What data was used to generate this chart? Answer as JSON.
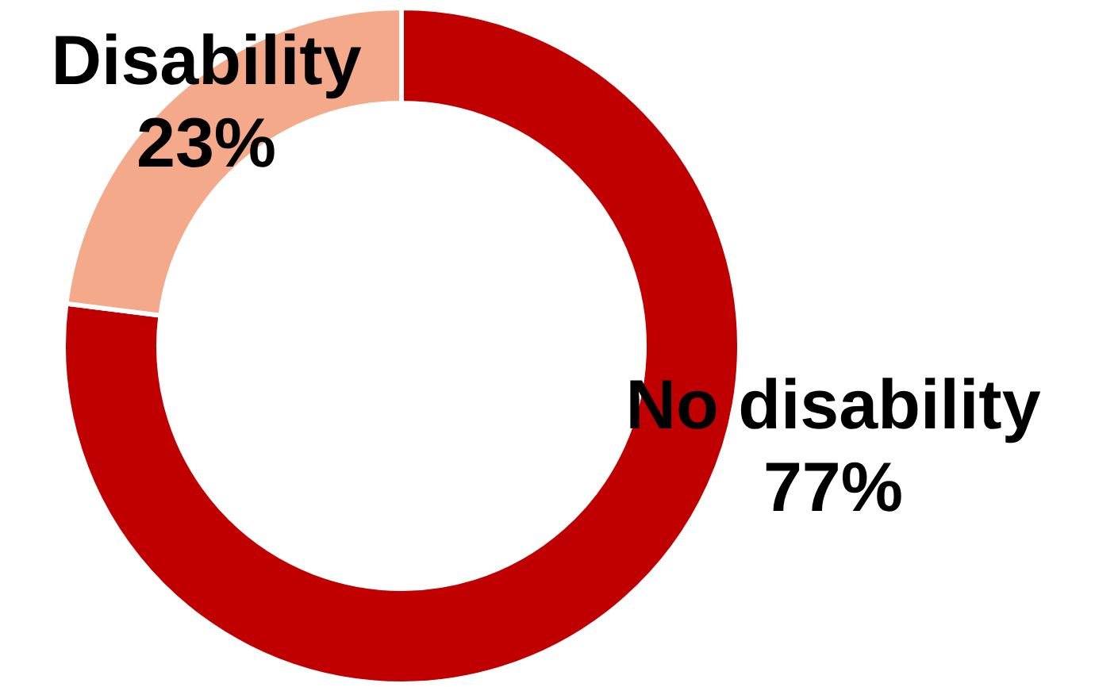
{
  "chart_data": {
    "type": "donut",
    "categories": [
      "No disability",
      "Disability"
    ],
    "values": [
      77,
      23
    ],
    "colors": [
      "#c00000",
      "#f4a98a"
    ],
    "value_labels": [
      "77%",
      "23%"
    ],
    "legend": false
  }
}
